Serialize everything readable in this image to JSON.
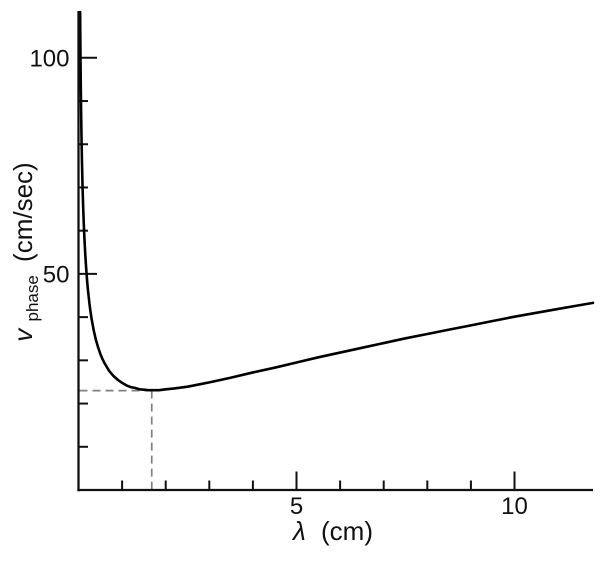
{
  "figure": {
    "background": "#ffffff",
    "description": "Line plot of phase velocity versus wavelength with a marked minimum"
  },
  "chart_data": {
    "type": "line",
    "title": "",
    "xlabel": {
      "variable": "λ",
      "unit": "(cm)"
    },
    "ylabel": {
      "variable": "v",
      "subscript": "phase",
      "unit": "(cm/sec)"
    },
    "xlim": [
      0,
      11.8
    ],
    "ylim": [
      0,
      110.6
    ],
    "grid": false,
    "legend": null,
    "x_ticks": {
      "major": [
        {
          "value": 5,
          "label": "5"
        },
        {
          "value": 10,
          "label": "10"
        }
      ],
      "minor": [
        1,
        2,
        3,
        4,
        6,
        7,
        8,
        9
      ]
    },
    "y_ticks": {
      "major": [
        {
          "value": 50,
          "label": "50"
        },
        {
          "value": 100,
          "label": "100"
        }
      ],
      "minor": [
        10,
        20,
        30,
        40,
        60,
        70,
        80,
        90
      ]
    },
    "series": [
      {
        "name": "phase-velocity-curve",
        "x": [
          0.0374,
          0.04,
          0.045,
          0.05,
          0.055,
          0.06,
          0.07,
          0.08,
          0.09,
          0.1,
          0.11,
          0.12,
          0.13,
          0.145,
          0.16,
          0.18,
          0.2,
          0.22,
          0.25,
          0.275,
          0.3,
          0.35,
          0.4,
          0.45,
          0.5,
          0.55,
          0.6,
          0.7,
          0.8,
          0.9,
          1.0,
          1.1,
          1.2,
          1.3,
          1.4,
          1.5,
          1.6,
          1.73,
          1.85,
          2.0,
          2.2,
          2.5,
          2.75,
          3.0,
          3.5,
          4.0,
          4.5,
          5.0,
          5.5,
          6.0,
          6.5,
          7.0,
          7.5,
          8.0,
          8.5,
          9.0,
          9.5,
          10.0,
          10.5,
          11.0,
          11.4,
          11.8
        ],
        "y": [
          110.6,
          107.0,
          100.9,
          95.7,
          91.2,
          87.4,
          80.9,
          75.7,
          71.4,
          67.7,
          64.6,
          61.9,
          59.5,
          56.4,
          53.7,
          50.7,
          48.1,
          46.0,
          43.2,
          41.3,
          39.6,
          36.9,
          34.7,
          33.0,
          31.5,
          30.3,
          29.3,
          27.6,
          26.4,
          25.5,
          24.8,
          24.2,
          23.8,
          23.6,
          23.3,
          23.2,
          23.1,
          23.1,
          23.1,
          23.3,
          23.5,
          23.9,
          24.4,
          24.9,
          26.0,
          27.2,
          28.3,
          29.5,
          30.7,
          31.8,
          32.9,
          34.0,
          35.1,
          36.1,
          37.1,
          38.1,
          39.1,
          40.1,
          41.0,
          41.9,
          42.6,
          43.3
        ]
      }
    ],
    "annotations": [
      {
        "type": "dashed-crosshair",
        "x": 1.68,
        "y": 23.0,
        "note": "minimum phase velocity"
      }
    ],
    "colors": {
      "curve": "#000000",
      "axis": "#111111",
      "dashed": "#808080"
    }
  }
}
